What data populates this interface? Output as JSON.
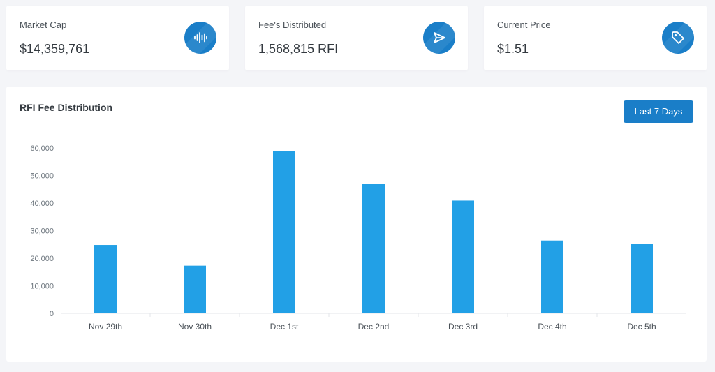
{
  "stats": [
    {
      "label": "Market Cap",
      "value": "$14,359,761",
      "icon": "waveform-icon"
    },
    {
      "label": "Fee's Distributed",
      "value": "1,568,815 RFI",
      "icon": "send-icon"
    },
    {
      "label": "Current Price",
      "value": "$1.51",
      "icon": "tag-icon"
    }
  ],
  "chart": {
    "title": "RFI Fee Distribution",
    "range_button": "Last 7 Days"
  },
  "colors": {
    "accent": "#1a7ec8",
    "bar": "#22a0e6",
    "background": "#f4f5f8"
  },
  "chart_data": {
    "type": "bar",
    "categories": [
      "Nov 29th",
      "Nov 30th",
      "Dec 1st",
      "Dec 2nd",
      "Dec 3rd",
      "Dec 4th",
      "Dec 5th"
    ],
    "values": [
      24800,
      17300,
      58900,
      47000,
      40900,
      26400,
      25300
    ],
    "yticks": [
      "0",
      "10,000",
      "20,000",
      "30,000",
      "40,000",
      "50,000",
      "60,000"
    ],
    "ylim": [
      0,
      60000
    ],
    "grid": false,
    "legend": "none"
  }
}
